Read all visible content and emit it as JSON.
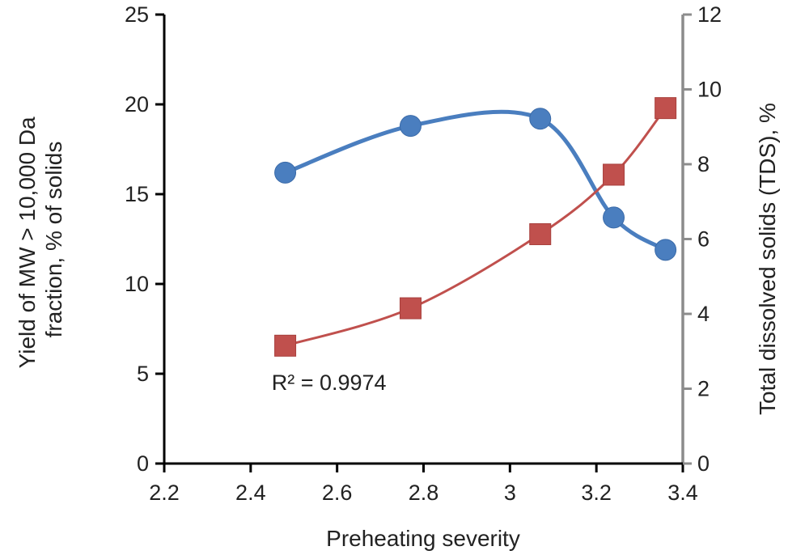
{
  "chart_data": {
    "type": "line",
    "title": "",
    "xlabel": "Preheating severity",
    "ylabel_left": [
      "Yield of  MW > 10,000 Da",
      "fraction, % of solids"
    ],
    "ylabel_right": "Total dissolved solids (TDS), %",
    "xlim": [
      2.2,
      3.4
    ],
    "ylim_left": [
      0,
      25
    ],
    "ylim_right": [
      0,
      12
    ],
    "x_ticks": [
      2.2,
      2.4,
      2.6,
      2.8,
      3.0,
      3.2,
      3.4
    ],
    "x_tick_labels": [
      "2.2",
      "2.4",
      "2.6",
      "2.8",
      "3",
      "3.2",
      "3.4"
    ],
    "y_left_ticks": [
      0,
      5,
      10,
      15,
      20,
      25
    ],
    "y_left_tick_labels": [
      "0",
      "5",
      "10",
      "15",
      "20",
      "25"
    ],
    "y_right_ticks": [
      0,
      2,
      4,
      6,
      8,
      10,
      12
    ],
    "y_right_tick_labels": [
      "0",
      "2",
      "4",
      "6",
      "8",
      "10",
      "12"
    ],
    "grid": false,
    "legend": "none",
    "series": [
      {
        "axis": "left",
        "marker": "circle",
        "color": "#4a7ebf",
        "x": [
          2.48,
          2.77,
          3.07,
          3.24,
          3.36
        ],
        "y": [
          16.2,
          18.8,
          19.2,
          13.7,
          11.9
        ]
      },
      {
        "axis": "right",
        "marker": "square",
        "color": "#c0504d",
        "x": [
          2.48,
          2.77,
          3.07,
          3.24,
          3.36
        ],
        "y": [
          3.15,
          4.15,
          6.13,
          7.72,
          9.5
        ]
      }
    ],
    "annotations": [
      {
        "text": "R² = 0.9974",
        "x": 2.6,
        "y_left": 4.5
      }
    ]
  }
}
